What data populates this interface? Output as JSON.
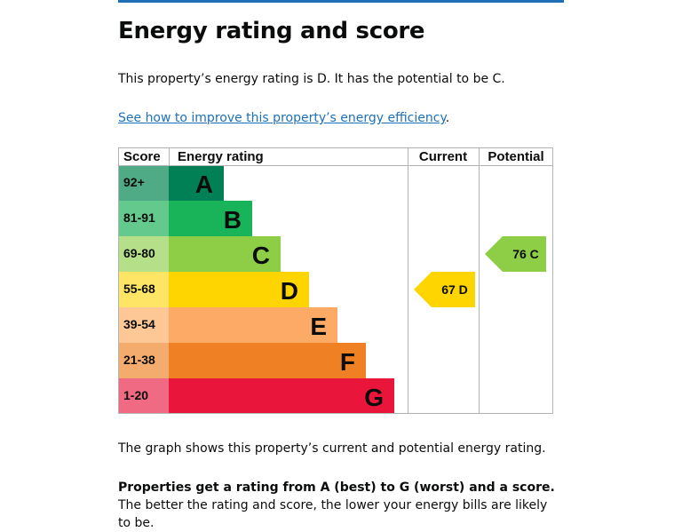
{
  "page": {
    "title": "Energy rating and score",
    "intro": "This property’s energy rating is D. It has the potential to be C.",
    "improve_link": "See how to improve this property’s energy efficiency",
    "improve_link_suffix": ".",
    "graph_caption": "The graph shows this property’s current and potential energy rating.",
    "rating_bold": "Properties get a rating from A (best) to G (worst) and a score.",
    "rating_rest": " The better the rating and score, the lower your energy bills are likely to be."
  },
  "colors": {
    "accent": "#1d70b8",
    "grid": "#b1b4b6"
  },
  "chart_data": {
    "type": "bar",
    "headers": {
      "score": "Score",
      "rating": "Energy rating",
      "current": "Current",
      "potential": "Potential"
    },
    "bands": [
      {
        "letter": "A",
        "score": "92+",
        "color": "#008054",
        "light": "#4faa86"
      },
      {
        "letter": "B",
        "score": "81-91",
        "color": "#19b459",
        "light": "#64c98d"
      },
      {
        "letter": "C",
        "score": "69-80",
        "color": "#8dce46",
        "light": "#b6df8a"
      },
      {
        "letter": "D",
        "score": "55-68",
        "color": "#ffd500",
        "light": "#ffe566"
      },
      {
        "letter": "E",
        "score": "39-54",
        "color": "#fcaa65",
        "light": "#fdc896"
      },
      {
        "letter": "F",
        "score": "21-38",
        "color": "#ef8023",
        "light": "#f4ab6e"
      },
      {
        "letter": "G",
        "score": "1-20",
        "color": "#e9153b",
        "light": "#f06a83"
      }
    ],
    "current": {
      "value": 67,
      "band": "D",
      "label": "67  D"
    },
    "potential": {
      "value": 76,
      "band": "C",
      "label": "76  C"
    }
  }
}
